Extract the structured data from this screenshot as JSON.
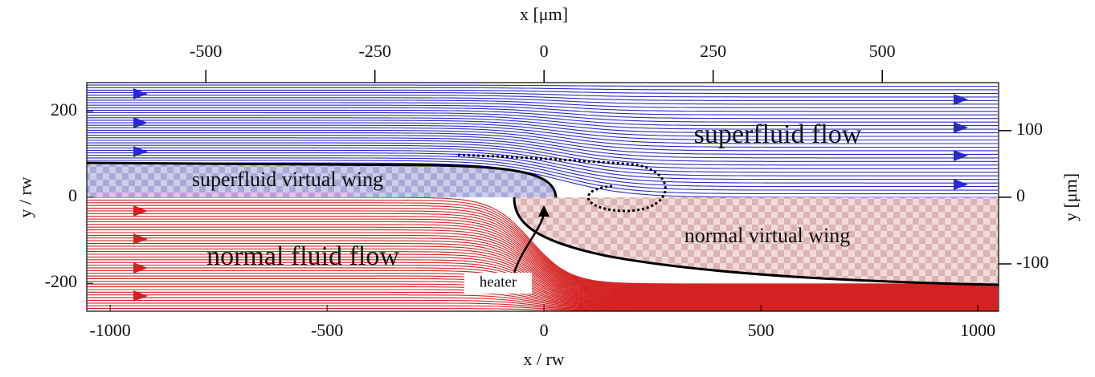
{
  "chart_data": {
    "type": "streamplot",
    "xlabel": "x / rw",
    "ylabel": "y / rw",
    "x2label": "x [μm]",
    "y2label": "y [μm]",
    "xlim": [
      -1054,
      1048
    ],
    "xticks": [
      -1000,
      -500,
      0,
      500,
      1000
    ],
    "ylim": [
      -265,
      267
    ],
    "yticks": [
      -200,
      0,
      200
    ],
    "x2lim": [
      -676,
      672
    ],
    "x2ticks": [
      -500,
      -250,
      0,
      250,
      500
    ],
    "y2lim": [
      -171,
      172
    ],
    "y2ticks": [
      -100,
      0,
      100
    ],
    "series": [
      {
        "name": "superfluid flow",
        "color": "#2a2ac8"
      },
      {
        "name": "normal fluid flow",
        "color": "#d42222"
      }
    ],
    "annotations": [
      "superfluid virtual wing",
      "normal virtual wing",
      "heater"
    ]
  }
}
